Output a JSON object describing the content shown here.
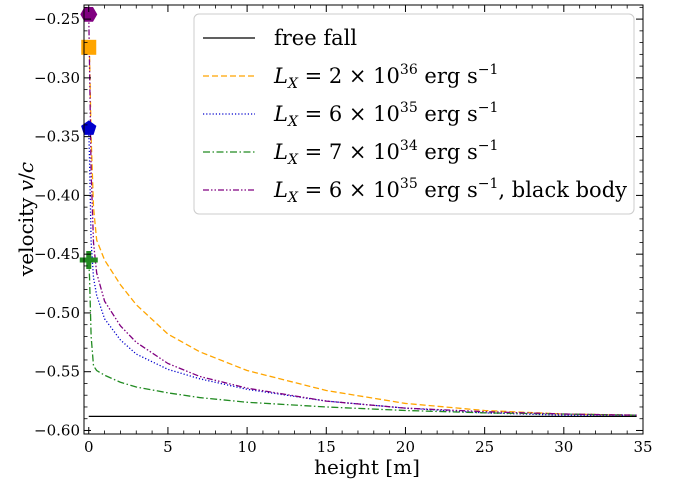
{
  "chart_data": {
    "type": "line",
    "title": "",
    "xlabel": "height [m]",
    "ylabel": "velocity v/c",
    "xlim": [
      -0.3,
      35
    ],
    "ylim": [
      -0.603,
      -0.238
    ],
    "xticks": [
      0,
      5,
      10,
      15,
      20,
      25,
      30,
      35
    ],
    "xtick_labels": [
      "0",
      "5",
      "10",
      "15",
      "20",
      "25",
      "30",
      "35"
    ],
    "yticks": [
      -0.25,
      -0.3,
      -0.35,
      -0.4,
      -0.45,
      -0.5,
      -0.55,
      -0.6
    ],
    "ytick_labels": [
      "−0.25",
      "−0.30",
      "−0.35",
      "−0.40",
      "−0.45",
      "−0.50",
      "−0.55",
      "−0.60"
    ],
    "grid": false,
    "legend_position": "top-right",
    "series": [
      {
        "name": "free fall",
        "color": "#000000",
        "dash": "solid",
        "x": [
          0,
          34.6
        ],
        "y": [
          -0.588,
          -0.588
        ]
      },
      {
        "name": "L_X = 2 × 10^36 erg s^-1",
        "legend_parts": [
          "2",
          "36"
        ],
        "color": "#ffa500",
        "dash": "dashed",
        "marker": "square",
        "x": [
          0,
          0.05,
          0.15,
          0.3,
          0.5,
          1,
          2,
          3,
          5,
          7,
          10,
          15,
          20,
          25,
          30,
          34.6
        ],
        "y": [
          -0.274,
          -0.28,
          -0.35,
          -0.41,
          -0.438,
          -0.455,
          -0.476,
          -0.493,
          -0.518,
          -0.533,
          -0.549,
          -0.566,
          -0.577,
          -0.583,
          -0.586,
          -0.587
        ]
      },
      {
        "name": "L_X = 6 × 10^35 erg s^-1",
        "legend_parts": [
          "6",
          "35"
        ],
        "color": "#0000cd",
        "dash": "dotted",
        "marker": "pentagon",
        "x": [
          0,
          0.05,
          0.15,
          0.3,
          0.5,
          1,
          2,
          3,
          5,
          7,
          10,
          15,
          20,
          25,
          30,
          34.6
        ],
        "y": [
          -0.343,
          -0.37,
          -0.44,
          -0.47,
          -0.485,
          -0.505,
          -0.523,
          -0.535,
          -0.548,
          -0.556,
          -0.565,
          -0.575,
          -0.581,
          -0.585,
          -0.587,
          -0.587
        ]
      },
      {
        "name": "L_X = 7 × 10^34 erg s^-1",
        "legend_parts": [
          "7",
          "34"
        ],
        "color": "#228b22",
        "dash": "dashdot",
        "marker": "plus",
        "x": [
          0,
          0.05,
          0.15,
          0.3,
          0.5,
          1,
          2,
          3,
          5,
          7,
          10,
          15,
          20,
          25,
          30,
          34.6
        ],
        "y": [
          -0.455,
          -0.47,
          -0.52,
          -0.545,
          -0.549,
          -0.553,
          -0.559,
          -0.563,
          -0.568,
          -0.572,
          -0.576,
          -0.58,
          -0.583,
          -0.585,
          -0.586,
          -0.587
        ]
      },
      {
        "name": "L_X = 6 × 10^35 erg s^-1, black body",
        "legend_parts": [
          "6",
          "35"
        ],
        "legend_suffix": ", black body",
        "color": "#800080",
        "dash": "dashdotdot",
        "marker": "hexagon",
        "x": [
          0,
          0.05,
          0.15,
          0.3,
          0.5,
          1,
          2,
          3,
          5,
          7,
          10,
          15,
          20,
          25,
          30,
          34.6
        ],
        "y": [
          -0.246,
          -0.29,
          -0.38,
          -0.44,
          -0.466,
          -0.49,
          -0.511,
          -0.525,
          -0.543,
          -0.554,
          -0.564,
          -0.575,
          -0.581,
          -0.584,
          -0.586,
          -0.587
        ]
      }
    ]
  }
}
